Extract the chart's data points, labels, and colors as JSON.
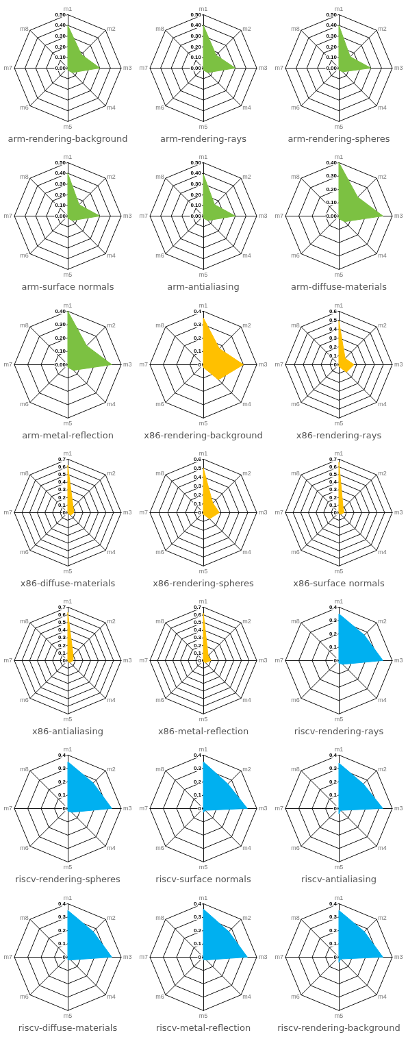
{
  "chart_data": [
    {
      "type": "radar",
      "title": "arm-rendering-background",
      "categories": [
        "m1",
        "m2",
        "m3",
        "m4",
        "m5",
        "m6",
        "m7",
        "m8"
      ],
      "ylim": [
        0,
        0.5
      ],
      "yticks": [
        {
          "value": 0,
          "label": "0.00"
        },
        {
          "value": 0.1,
          "label": "0.10"
        },
        {
          "value": 0.2,
          "label": "0.20"
        },
        {
          "value": 0.3,
          "label": "0.30"
        },
        {
          "value": 0.4,
          "label": "0.40"
        },
        {
          "value": 0.5,
          "label": "0.50"
        }
      ],
      "series": [
        {
          "color": "#7cc142",
          "values": [
            0.4,
            0.18,
            0.3,
            0.06,
            0.02,
            0,
            0,
            0
          ]
        }
      ]
    },
    {
      "type": "radar",
      "title": "arm-rendering-rays",
      "categories": [
        "m1",
        "m2",
        "m3",
        "m4",
        "m5",
        "m6",
        "m7",
        "m8"
      ],
      "ylim": [
        0,
        0.5
      ],
      "yticks": [
        {
          "value": 0,
          "label": "0.00"
        },
        {
          "value": 0.1,
          "label": "0.10"
        },
        {
          "value": 0.2,
          "label": "0.20"
        },
        {
          "value": 0.3,
          "label": "0.30"
        },
        {
          "value": 0.4,
          "label": "0.40"
        },
        {
          "value": 0.5,
          "label": "0.50"
        }
      ],
      "series": [
        {
          "color": "#7cc142",
          "values": [
            0.4,
            0.17,
            0.3,
            0.06,
            0.02,
            0,
            0,
            0
          ]
        }
      ]
    },
    {
      "type": "radar",
      "title": "arm-rendering-spheres",
      "categories": [
        "m1",
        "m2",
        "m3",
        "m4",
        "m5",
        "m6",
        "m7",
        "m8"
      ],
      "ylim": [
        0,
        0.5
      ],
      "yticks": [
        {
          "value": 0,
          "label": "0.00"
        },
        {
          "value": 0.1,
          "label": "0.10"
        },
        {
          "value": 0.2,
          "label": "0.20"
        },
        {
          "value": 0.3,
          "label": "0.30"
        },
        {
          "value": 0.4,
          "label": "0.40"
        },
        {
          "value": 0.5,
          "label": "0.50"
        }
      ],
      "series": [
        {
          "color": "#7cc142",
          "values": [
            0.4,
            0.15,
            0.3,
            0.05,
            0.02,
            0,
            0,
            0
          ]
        }
      ]
    },
    {
      "type": "radar",
      "title": "arm-surface normals",
      "categories": [
        "m1",
        "m2",
        "m3",
        "m4",
        "m5",
        "m6",
        "m7",
        "m8"
      ],
      "ylim": [
        0,
        0.5
      ],
      "yticks": [
        {
          "value": 0,
          "label": "0.00"
        },
        {
          "value": 0.1,
          "label": "0.10"
        },
        {
          "value": 0.2,
          "label": "0.20"
        },
        {
          "value": 0.3,
          "label": "0.30"
        },
        {
          "value": 0.4,
          "label": "0.40"
        },
        {
          "value": 0.5,
          "label": "0.50"
        }
      ],
      "series": [
        {
          "color": "#7cc142",
          "values": [
            0.4,
            0.15,
            0.3,
            0.06,
            0.02,
            0,
            0,
            0
          ]
        }
      ]
    },
    {
      "type": "radar",
      "title": "arm-antialiasing",
      "categories": [
        "m1",
        "m2",
        "m3",
        "m4",
        "m5",
        "m6",
        "m7",
        "m8"
      ],
      "ylim": [
        0,
        0.5
      ],
      "yticks": [
        {
          "value": 0,
          "label": "0.00"
        },
        {
          "value": 0.1,
          "label": "0.10"
        },
        {
          "value": 0.2,
          "label": "0.20"
        },
        {
          "value": 0.3,
          "label": "0.30"
        },
        {
          "value": 0.4,
          "label": "0.40"
        },
        {
          "value": 0.5,
          "label": "0.50"
        }
      ],
      "series": [
        {
          "color": "#7cc142",
          "values": [
            0.39,
            0.15,
            0.3,
            0.06,
            0.02,
            0,
            0,
            0
          ]
        }
      ]
    },
    {
      "type": "radar",
      "title": "arm-diffuse-materials",
      "categories": [
        "m1",
        "m2",
        "m3",
        "m4",
        "m5",
        "m6",
        "m7",
        "m8"
      ],
      "ylim": [
        0,
        0.4
      ],
      "yticks": [
        {
          "value": 0,
          "label": "0.00"
        },
        {
          "value": 0.1,
          "label": "0.10"
        },
        {
          "value": 0.2,
          "label": "0.20"
        },
        {
          "value": 0.3,
          "label": "0.30"
        },
        {
          "value": 0.4,
          "label": "0.40"
        }
      ],
      "series": [
        {
          "color": "#7cc142",
          "values": [
            0.4,
            0.2,
            0.33,
            0.06,
            0.02,
            0,
            0,
            0
          ]
        }
      ]
    },
    {
      "type": "radar",
      "title": "arm-metal-reflection",
      "categories": [
        "m1",
        "m2",
        "m3",
        "m4",
        "m5",
        "m6",
        "m7",
        "m8"
      ],
      "ylim": [
        0,
        0.4
      ],
      "yticks": [
        {
          "value": 0,
          "label": "0.00"
        },
        {
          "value": 0.1,
          "label": "0.10"
        },
        {
          "value": 0.2,
          "label": "0.20"
        },
        {
          "value": 0.3,
          "label": "0.30"
        },
        {
          "value": 0.4,
          "label": "0.40"
        }
      ],
      "series": [
        {
          "color": "#7cc142",
          "values": [
            0.4,
            0.2,
            0.33,
            0.06,
            0.02,
            0,
            0,
            0
          ]
        }
      ]
    },
    {
      "type": "radar",
      "title": "x86-rendering-background",
      "categories": [
        "m1",
        "m2",
        "m3",
        "m4",
        "m5",
        "m6",
        "m7",
        "m8"
      ],
      "ylim": [
        0,
        0.4
      ],
      "yticks": [
        0,
        0.1,
        0.2,
        0.3,
        0.4
      ],
      "series": [
        {
          "color": "#ffc000",
          "values": [
            0.35,
            0.17,
            0.3,
            0.16,
            0.02,
            0,
            0,
            0
          ]
        }
      ]
    },
    {
      "type": "radar",
      "title": "x86-rendering-rays",
      "categories": [
        "m1",
        "m2",
        "m3",
        "m4",
        "m5",
        "m6",
        "m7",
        "m8"
      ],
      "ylim": [
        0,
        0.6
      ],
      "yticks": [
        0,
        0.1,
        0.2,
        0.3,
        0.4,
        0.5,
        0.6
      ],
      "series": [
        {
          "color": "#ffc000",
          "values": [
            0.49,
            0.1,
            0.17,
            0.12,
            0.02,
            0,
            0,
            0
          ]
        }
      ]
    },
    {
      "type": "radar",
      "title": "x86-diffuse-materials",
      "categories": [
        "m1",
        "m2",
        "m3",
        "m4",
        "m5",
        "m6",
        "m7",
        "m8"
      ],
      "ylim": [
        0,
        0.7
      ],
      "yticks": [
        0,
        0.1,
        0.2,
        0.3,
        0.4,
        0.5,
        0.6,
        0.7
      ],
      "series": [
        {
          "color": "#ffc000",
          "values": [
            0.62,
            0.1,
            0.08,
            0.05,
            0.01,
            0,
            0,
            0
          ]
        }
      ]
    },
    {
      "type": "radar",
      "title": "x86-rendering-spheres",
      "categories": [
        "m1",
        "m2",
        "m3",
        "m4",
        "m5",
        "m6",
        "m7",
        "m8"
      ],
      "ylim": [
        0,
        0.6
      ],
      "yticks": [
        0,
        0.1,
        0.2,
        0.3,
        0.4,
        0.5,
        0.6
      ],
      "series": [
        {
          "color": "#ffc000",
          "values": [
            0.5,
            0.15,
            0.18,
            0.1,
            0.02,
            0,
            0,
            0
          ]
        }
      ]
    },
    {
      "type": "radar",
      "title": "x86-surface normals",
      "categories": [
        "m1",
        "m2",
        "m3",
        "m4",
        "m5",
        "m6",
        "m7",
        "m8"
      ],
      "ylim": [
        0,
        0.7
      ],
      "yticks": [
        0,
        0.1,
        0.2,
        0.3,
        0.4,
        0.5,
        0.6,
        0.7
      ],
      "series": [
        {
          "color": "#ffc000",
          "values": [
            0.66,
            0.08,
            0.07,
            0.03,
            0.01,
            0,
            0,
            0
          ]
        }
      ]
    },
    {
      "type": "radar",
      "title": "x86-antialiasing",
      "categories": [
        "m1",
        "m2",
        "m3",
        "m4",
        "m5",
        "m6",
        "m7",
        "m8"
      ],
      "ylim": [
        0,
        0.7
      ],
      "yticks": [
        0,
        0.1,
        0.2,
        0.3,
        0.4,
        0.5,
        0.6,
        0.7
      ],
      "series": [
        {
          "color": "#ffc000",
          "values": [
            0.63,
            0.1,
            0.07,
            0.04,
            0.01,
            0,
            0,
            0
          ]
        }
      ]
    },
    {
      "type": "radar",
      "title": "x86-metal-reflection",
      "categories": [
        "m1",
        "m2",
        "m3",
        "m4",
        "m5",
        "m6",
        "m7",
        "m8"
      ],
      "ylim": [
        0,
        0.7
      ],
      "yticks": [
        0,
        0.1,
        0.2,
        0.3,
        0.4,
        0.5,
        0.6,
        0.7
      ],
      "series": [
        {
          "color": "#ffc000",
          "values": [
            0.62,
            0.09,
            0.1,
            0.04,
            0.01,
            0,
            0,
            0
          ]
        }
      ]
    },
    {
      "type": "radar",
      "title": "riscv-rendering-rays",
      "categories": [
        "m1",
        "m2",
        "m3",
        "m4",
        "m5",
        "m6",
        "m7",
        "m8"
      ],
      "ylim": [
        0,
        0.4
      ],
      "yticks": [
        0,
        0.1,
        0.2,
        0.3,
        0.4
      ],
      "series": [
        {
          "color": "#00b0f0",
          "values": [
            0.35,
            0.27,
            0.33,
            0.04,
            0.02,
            0,
            0,
            0
          ]
        }
      ]
    },
    {
      "type": "radar",
      "title": "riscv-rendering-spheres",
      "categories": [
        "m1",
        "m2",
        "m3",
        "m4",
        "m5",
        "m6",
        "m7",
        "m8"
      ],
      "ylim": [
        0,
        0.4
      ],
      "yticks": [
        0,
        0.1,
        0.2,
        0.3,
        0.4
      ],
      "series": [
        {
          "color": "#00b0f0",
          "values": [
            0.35,
            0.27,
            0.33,
            0.04,
            0.02,
            0,
            0,
            0
          ]
        }
      ]
    },
    {
      "type": "radar",
      "title": "riscv-surface normals",
      "categories": [
        "m1",
        "m2",
        "m3",
        "m4",
        "m5",
        "m6",
        "m7",
        "m8"
      ],
      "ylim": [
        0,
        0.4
      ],
      "yticks": [
        0,
        0.1,
        0.2,
        0.3,
        0.4
      ],
      "series": [
        {
          "color": "#00b0f0",
          "values": [
            0.35,
            0.26,
            0.33,
            0.02,
            0.03,
            0,
            0,
            0
          ]
        }
      ]
    },
    {
      "type": "radar",
      "title": "riscv-antialiasing",
      "categories": [
        "m1",
        "m2",
        "m3",
        "m4",
        "m5",
        "m6",
        "m7",
        "m8"
      ],
      "ylim": [
        0,
        0.4
      ],
      "yticks": [
        0,
        0.1,
        0.2,
        0.3,
        0.4
      ],
      "series": [
        {
          "color": "#00b0f0",
          "values": [
            0.34,
            0.26,
            0.33,
            0.02,
            0.04,
            0,
            0,
            0
          ]
        }
      ]
    },
    {
      "type": "radar",
      "title": "riscv-diffuse-materials",
      "categories": [
        "m1",
        "m2",
        "m3",
        "m4",
        "m5",
        "m6",
        "m7",
        "m8"
      ],
      "ylim": [
        0,
        0.4
      ],
      "yticks": [
        0,
        0.1,
        0.2,
        0.3,
        0.4
      ],
      "series": [
        {
          "color": "#00b0f0",
          "values": [
            0.35,
            0.27,
            0.33,
            0.03,
            0.02,
            0,
            0,
            0
          ]
        }
      ]
    },
    {
      "type": "radar",
      "title": "riscv-metal-reflection",
      "categories": [
        "m1",
        "m2",
        "m3",
        "m4",
        "m5",
        "m6",
        "m7",
        "m8"
      ],
      "ylim": [
        0,
        0.4
      ],
      "yticks": [
        0,
        0.1,
        0.2,
        0.3,
        0.4
      ],
      "series": [
        {
          "color": "#00b0f0",
          "values": [
            0.36,
            0.27,
            0.33,
            0.03,
            0.02,
            0,
            0,
            0
          ]
        }
      ]
    },
    {
      "type": "radar",
      "title": "riscv-rendering-background",
      "categories": [
        "m1",
        "m2",
        "m3",
        "m4",
        "m5",
        "m6",
        "m7",
        "m8"
      ],
      "ylim": [
        0,
        0.4
      ],
      "yticks": [
        0,
        0.1,
        0.2,
        0.3,
        0.4
      ],
      "series": [
        {
          "color": "#00b0f0",
          "values": [
            0.35,
            0.27,
            0.33,
            0.02,
            0.04,
            0,
            0,
            0
          ]
        }
      ]
    }
  ]
}
